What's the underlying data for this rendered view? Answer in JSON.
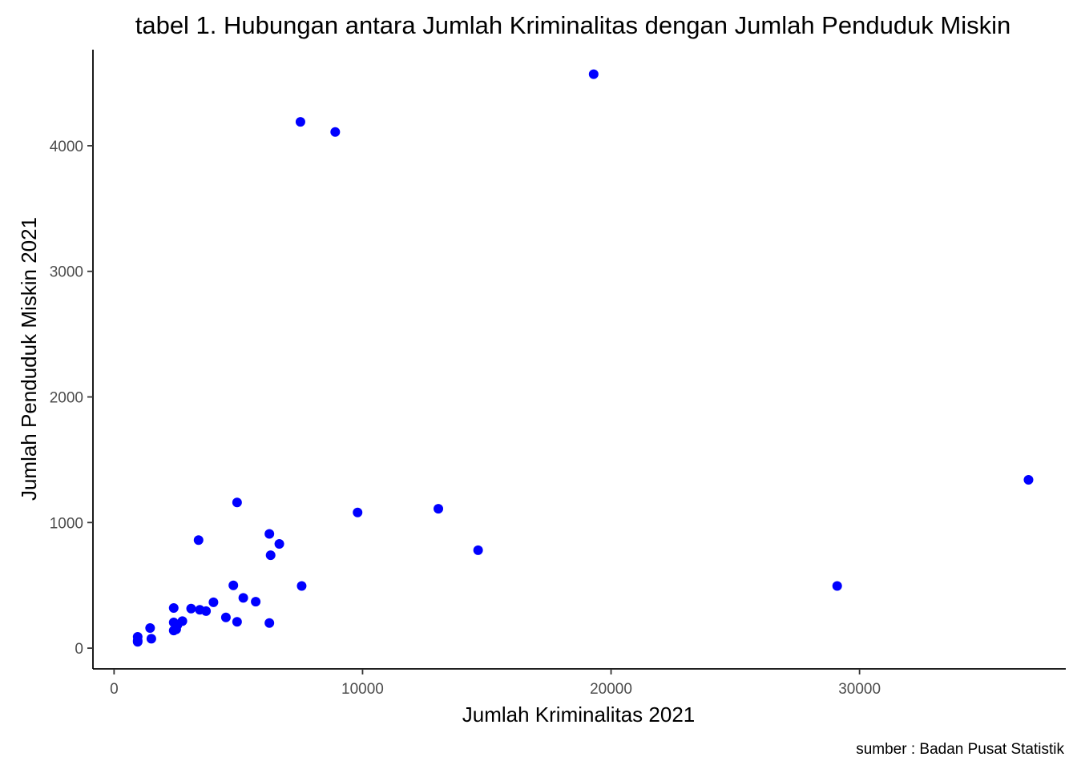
{
  "chart_data": {
    "type": "scatter",
    "title": "tabel 1. Hubungan antara Jumlah Kriminalitas dengan Jumlah Penduduk Miskin",
    "xlabel": "Jumlah Kriminalitas 2021",
    "ylabel": "Jumlah Penduduk Miskin 2021",
    "caption": "sumber : Badan Pusat Statistik",
    "xlim": [
      -850,
      38300
    ],
    "ylim": [
      -165,
      4765
    ],
    "x_ticks": [
      0,
      10000,
      20000,
      30000
    ],
    "y_ticks": [
      0,
      1000,
      2000,
      3000,
      4000
    ],
    "x_tick_labels": [
      "0",
      "10000",
      "20000",
      "30000"
    ],
    "y_tick_labels": [
      "0",
      "1000",
      "2000",
      "3000",
      "4000"
    ],
    "grid": false,
    "legend": "none",
    "point_color": "#0000ff",
    "points": [
      {
        "x": 19300,
        "y": 4570
      },
      {
        "x": 7500,
        "y": 4190
      },
      {
        "x": 8900,
        "y": 4110
      },
      {
        "x": 36800,
        "y": 1340
      },
      {
        "x": 4950,
        "y": 1160
      },
      {
        "x": 13050,
        "y": 1110
      },
      {
        "x": 9800,
        "y": 1080
      },
      {
        "x": 6250,
        "y": 910
      },
      {
        "x": 3400,
        "y": 860
      },
      {
        "x": 6650,
        "y": 830
      },
      {
        "x": 14650,
        "y": 780
      },
      {
        "x": 6300,
        "y": 740
      },
      {
        "x": 4800,
        "y": 500
      },
      {
        "x": 7550,
        "y": 495
      },
      {
        "x": 29100,
        "y": 495
      },
      {
        "x": 5200,
        "y": 400
      },
      {
        "x": 5700,
        "y": 370
      },
      {
        "x": 4000,
        "y": 365
      },
      {
        "x": 2400,
        "y": 320
      },
      {
        "x": 3100,
        "y": 315
      },
      {
        "x": 3450,
        "y": 305
      },
      {
        "x": 3700,
        "y": 295
      },
      {
        "x": 4500,
        "y": 245
      },
      {
        "x": 2750,
        "y": 215
      },
      {
        "x": 4950,
        "y": 210
      },
      {
        "x": 2400,
        "y": 205
      },
      {
        "x": 6250,
        "y": 200
      },
      {
        "x": 2550,
        "y": 185
      },
      {
        "x": 1450,
        "y": 160
      },
      {
        "x": 2400,
        "y": 140
      },
      {
        "x": 2500,
        "y": 150
      },
      {
        "x": 950,
        "y": 90
      },
      {
        "x": 1500,
        "y": 75
      },
      {
        "x": 950,
        "y": 60
      },
      {
        "x": 950,
        "y": 50
      }
    ]
  }
}
